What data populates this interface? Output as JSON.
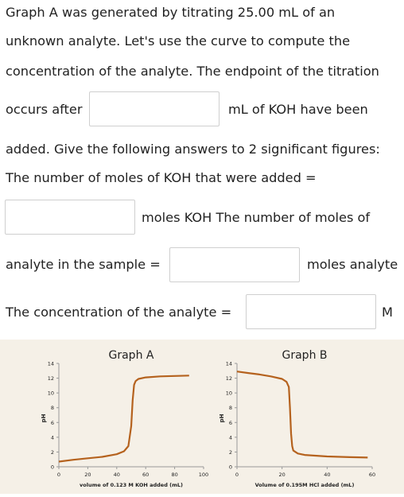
{
  "question": {
    "line1": "Graph A was generated by titrating 25.00 mL of an",
    "line2": "unknown analyte. Let's use the curve to compute the",
    "line3": "concentration of the analyte. The endpoint of the titration",
    "line4_prefix": "occurs after",
    "line4_suffix": "mL of KOH have been",
    "line5": "added. Give the following answers to 2 significant figures:",
    "line6": "The number of moles of KOH that were added =",
    "line7_suffix": "moles KOH The number of moles of",
    "line8_prefix": "analyte in the sample =",
    "line8_suffix": "moles analyte",
    "line9_prefix": "The concentration of the analyte =",
    "line9_suffix": "M"
  },
  "inputs": {
    "endpoint_volume": "",
    "moles_koh": "",
    "moles_analyte": "",
    "concentration": ""
  },
  "chart_data": [
    {
      "type": "line",
      "title": "Graph A",
      "xlabel": "volume of 0.123 M KOH added (mL)",
      "ylabel": "pH",
      "xlim": [
        0,
        100
      ],
      "ylim": [
        0,
        14
      ],
      "x_ticks": [
        "0",
        "20",
        "40",
        "60",
        "80",
        "100"
      ],
      "y_ticks": [
        "0",
        "2",
        "4",
        "6",
        "8",
        "10",
        "12",
        "14"
      ],
      "color": "#b5621e",
      "x": [
        0,
        10,
        20,
        30,
        40,
        45,
        48,
        50,
        51,
        52,
        53,
        55,
        60,
        70,
        80,
        90
      ],
      "y": [
        0.7,
        0.95,
        1.15,
        1.35,
        1.7,
        2.1,
        2.8,
        5.5,
        9.0,
        11.1,
        11.6,
        11.9,
        12.1,
        12.25,
        12.3,
        12.35
      ]
    },
    {
      "type": "line",
      "title": "Graph B",
      "xlabel": "Volume of 0.195M HCl added (mL)",
      "ylabel": "pH",
      "xlim": [
        0,
        60
      ],
      "ylim": [
        0,
        14
      ],
      "x_ticks": [
        "0",
        "20",
        "40",
        "60"
      ],
      "y_ticks": [
        "0",
        "2",
        "4",
        "6",
        "8",
        "10",
        "12",
        "14"
      ],
      "color": "#b5621e",
      "x": [
        0,
        5,
        10,
        15,
        20,
        22,
        23,
        23.5,
        24,
        24.5,
        25,
        27,
        30,
        40,
        50,
        58
      ],
      "y": [
        12.9,
        12.7,
        12.5,
        12.25,
        11.9,
        11.5,
        10.8,
        8.0,
        4.5,
        2.8,
        2.2,
        1.8,
        1.6,
        1.4,
        1.3,
        1.25
      ]
    }
  ]
}
